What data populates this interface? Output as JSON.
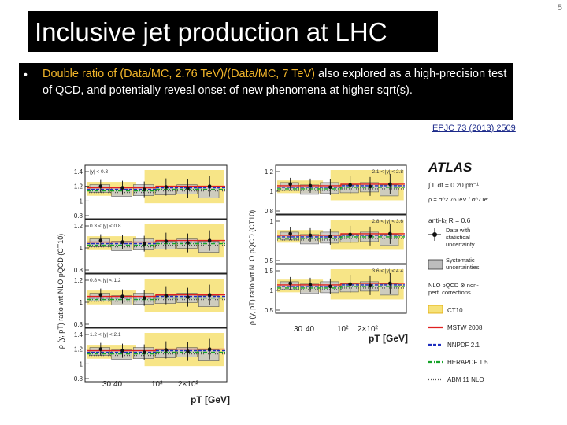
{
  "slide": {
    "number": "5"
  },
  "title": "Inclusive jet production at LHC",
  "bullet": {
    "marker": "•",
    "part1": "Double ratio of (Data/MC, 2.76 TeV)/(Data/MC, 7 TeV)",
    "part2": " also explored as a high-precision test of QCD, and potentially reveal onset of new phenomena at higher sqrt(s)."
  },
  "citation": "EPJC 73 (2013) 2509",
  "figure": {
    "ylabel_left": "ρ (y, pT) ratio wrt NLO pQCD (CT10)",
    "ylabel_right": "ρ (y, pT) ratio wrt NLO pQCD (CT10)",
    "xlabel": "pT [GeV]",
    "xticks_left": [
      "30",
      "40",
      "10²",
      "2×10²"
    ],
    "xticks_right": [
      "30",
      "40",
      "10²",
      "2×10²"
    ],
    "left_panels": [
      {
        "label": "|y| < 0.3",
        "ticks": [
          "1.4",
          "1.2",
          "1",
          "0.8"
        ]
      },
      {
        "label": "0.3 < |y| < 0.8",
        "ticks": [
          "1.2",
          "1",
          "0.8"
        ]
      },
      {
        "label": "0.8 < |y| < 1.2",
        "ticks": [
          "1.2",
          "1",
          "0.8"
        ]
      },
      {
        "label": "1.2 < |y| < 2.1",
        "ticks": [
          "1.4",
          "1.2",
          "1",
          "0.8"
        ]
      }
    ],
    "right_panels": [
      {
        "label": "2.1 < |y| < 2.8",
        "ticks": [
          "1.2",
          "1",
          "0.8"
        ]
      },
      {
        "label": "2.8 < |y| < 3.6",
        "ticks": [
          "1",
          "0.5"
        ]
      },
      {
        "label": "3.6 < |y| < 4.4",
        "ticks": [
          "1.5",
          "1",
          "0.5"
        ]
      }
    ],
    "legend": {
      "experiment": "ATLAS",
      "lumi": "∫ L dt = 0.20 pb⁻¹",
      "ratio": "ρ = σ^2.76TeV / σ^7TeV",
      "algo": "anti-kₜ R = 0.6",
      "data_label": "Data with statistical uncertainty",
      "syst_label": "Systematic uncertainties",
      "nlo_label": "NLO pQCD ⊗ non-pert. corrections",
      "pdfs": [
        {
          "name": "CT10",
          "color": "#f0c419",
          "style": "band"
        },
        {
          "name": "MSTW 2008",
          "color": "#e02020",
          "style": "solid"
        },
        {
          "name": "NNPDF 2.1",
          "color": "#1f2fbf",
          "style": "dash"
        },
        {
          "name": "HERAPDF 1.5",
          "color": "#17a32a",
          "style": "dashdot"
        },
        {
          "name": "ABM 11 NLO",
          "color": "#555555",
          "style": "dot"
        }
      ]
    }
  }
}
